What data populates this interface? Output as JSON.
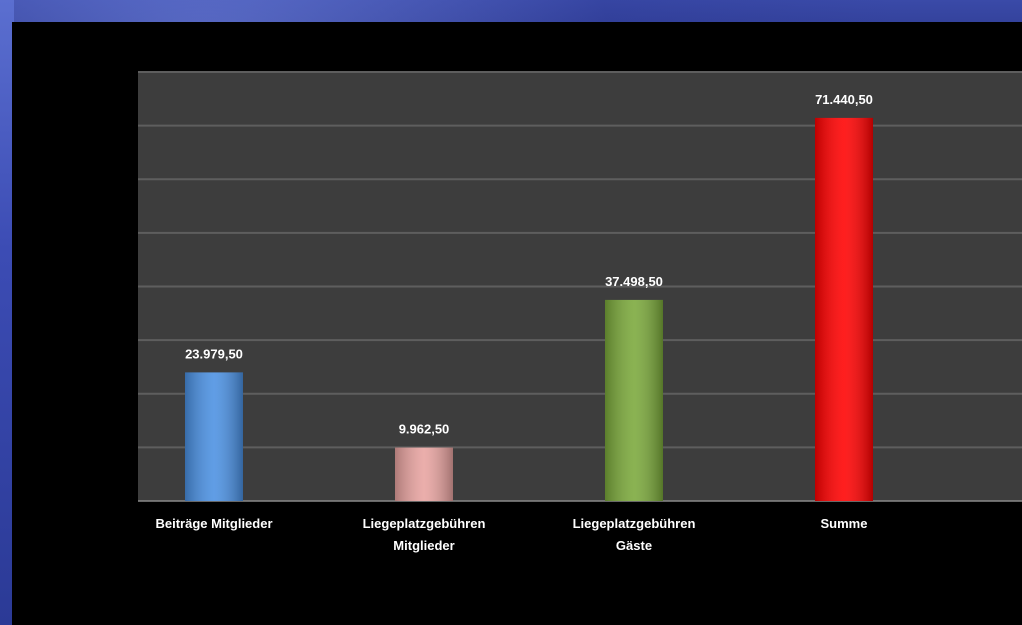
{
  "chart_data": {
    "type": "bar",
    "categories": [
      [
        "Beiträge Mitglieder"
      ],
      [
        "Liegeplatzgebühren",
        "Mitglieder"
      ],
      [
        "Liegeplatzgebühren",
        "Gäste"
      ],
      [
        "Summe"
      ]
    ],
    "values": [
      23979.5,
      9962.5,
      37498.5,
      71440.5
    ],
    "data_labels": [
      "23.979,50",
      "9.962,50",
      "37.498,50",
      "71.440,50"
    ],
    "bar_colors": [
      "#4a90e2",
      "#e8a3a0",
      "#7aa83a",
      "#ff0000"
    ],
    "ylim": [
      0,
      80000
    ],
    "gridline_step": 10000,
    "grid": true,
    "legend": "none",
    "title": "",
    "xlabel": "",
    "ylabel": ""
  }
}
